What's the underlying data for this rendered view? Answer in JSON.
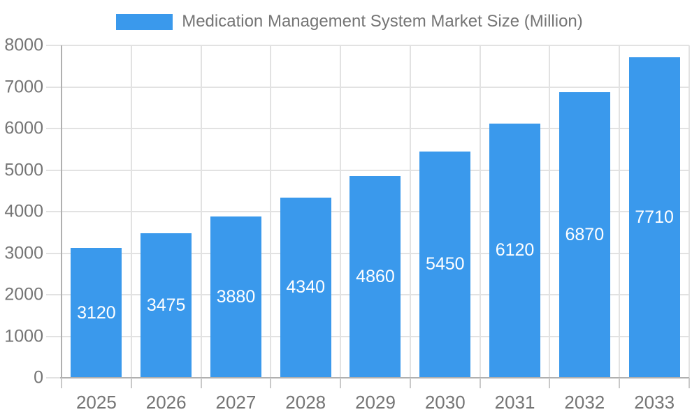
{
  "legend": {
    "label": "Medication Management System Market Size (Million)"
  },
  "colors": {
    "bar": "#3A99EC",
    "grid": "#E2E2E2",
    "axis": "#B0B0B0",
    "tick": "#C9C9C9",
    "text": "#757575",
    "value_label": "#FFFFFF",
    "background": "#FFFFFF"
  },
  "chart_data": {
    "type": "bar",
    "title": "Medication Management System Market Size (Million)",
    "categories": [
      "2025",
      "2026",
      "2027",
      "2028",
      "2029",
      "2030",
      "2031",
      "2032",
      "2033"
    ],
    "values": [
      3120,
      3475,
      3880,
      4340,
      4860,
      5450,
      6120,
      6870,
      7710
    ],
    "xlabel": "",
    "ylabel": "",
    "ylim": [
      0,
      8000
    ],
    "ytick_step": 1000,
    "ytick_labels": [
      "0",
      "1000",
      "2000",
      "3000",
      "4000",
      "5000",
      "6000",
      "7000",
      "8000"
    ],
    "grid": true,
    "legend_position": "top",
    "value_label_position": "inside-center",
    "bar_color": "#3A99EC"
  }
}
